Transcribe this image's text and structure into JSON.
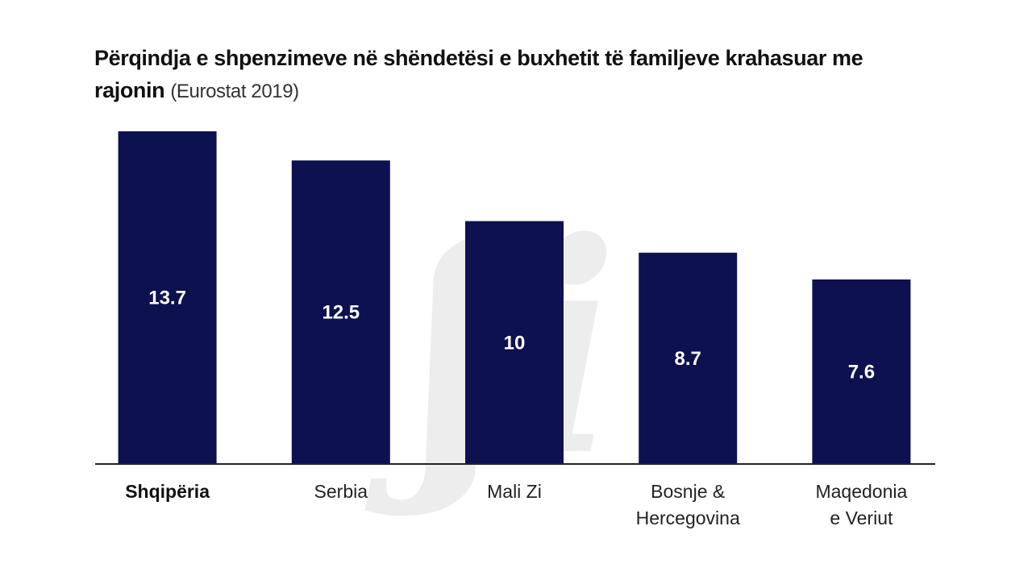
{
  "chart_data": {
    "type": "bar",
    "title": "Përqindja e shpenzimeve në shëndetësi e buxhetit të familjeve krahasuar me rajonin",
    "subtitle": "(Eurostat 2019)",
    "categories": [
      "Shqipëria",
      "Serbia",
      "Mali Zi",
      "Bosnje & Hercegovina",
      "Maqedonia e Veriut"
    ],
    "category_lines": [
      [
        "Shqipëria"
      ],
      [
        "Serbia"
      ],
      [
        "Mali Zi"
      ],
      [
        "Bosnje &",
        "Hercegovina"
      ],
      [
        "Maqedonia",
        "e Veriut"
      ]
    ],
    "values": [
      13.7,
      12.5,
      10,
      8.7,
      7.6
    ],
    "value_labels": [
      "13.7",
      "12.5",
      "10",
      "8.7",
      "7.6"
    ],
    "highlight_category": "Shqipëria",
    "bar_color": "#0d1150",
    "ylim": [
      0,
      13.7
    ],
    "xlabel": "",
    "ylabel": "",
    "grid": false,
    "legend": "none"
  }
}
